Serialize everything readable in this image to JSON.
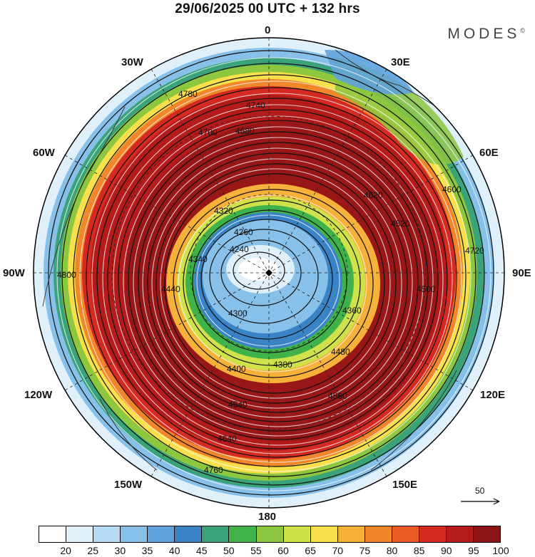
{
  "title": "29/06/2025  00 UTC  + 132 hrs",
  "brand": "MODES",
  "brand_mark": "©",
  "longitude_labels": {
    "n": "0",
    "ne": "30E",
    "ene": "60E",
    "e": "90E",
    "ese": "120E",
    "se": "150E",
    "s": "180",
    "sw": "150W",
    "wsw": "120W",
    "w": "90W",
    "wnw": "60W",
    "nw": "30W"
  },
  "reference_vector": "50",
  "colorbar": {
    "ticks": [
      "20",
      "25",
      "30",
      "35",
      "40",
      "45",
      "50",
      "55",
      "60",
      "65",
      "70",
      "75",
      "80",
      "85",
      "90",
      "95",
      "100"
    ],
    "colors": [
      "#ffffff",
      "#dff0fb",
      "#b5dcf4",
      "#87c1ea",
      "#5ea3dc",
      "#3b83c7",
      "#3aa37a",
      "#3fb34a",
      "#8dc63f",
      "#cfe24a",
      "#f7e04b",
      "#f6b13a",
      "#f2862b",
      "#ea5a24",
      "#d42a22",
      "#b51b1b",
      "#8c1414"
    ]
  },
  "contour_labels": [
    "4780",
    "4740",
    "4700",
    "4680",
    "4640",
    "4620",
    "4600",
    "4560",
    "4540",
    "4520",
    "4500",
    "4480",
    "4440",
    "4400",
    "4380",
    "4360",
    "4340",
    "4320",
    "4300",
    "4260",
    "4240",
    "4800",
    "4760",
    "4720"
  ],
  "icons": {
    "pole": "pole-marker-icon",
    "arrow": "reference-arrow-icon"
  }
}
